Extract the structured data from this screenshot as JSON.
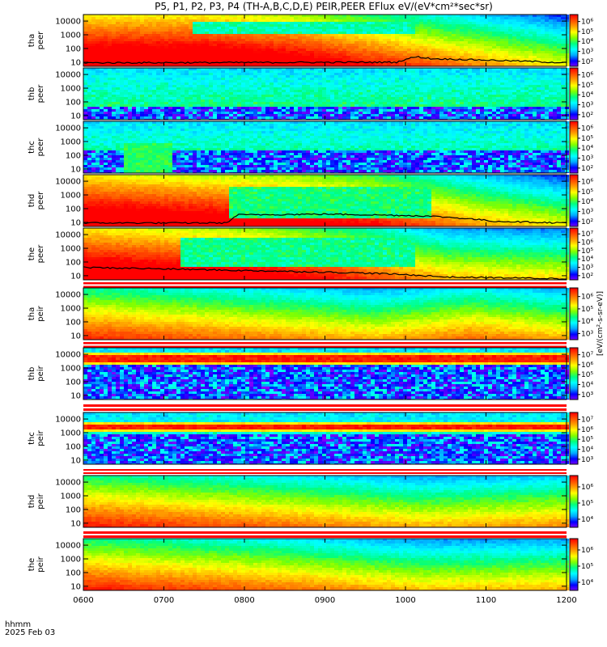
{
  "title": "P5, P1, P2, P3, P4 (TH-A,B,C,D,E) PEIR,PEER EFlux eV/(eV*cm²*sec*sr)",
  "footer": {
    "line1": "hhmm",
    "line2": "2025 Feb 03"
  },
  "colorbar_label": "[eV/(cm²-s-sr-eV)]",
  "colormap": [
    "#7f00ff",
    "#0000ff",
    "#00aaff",
    "#00ffff",
    "#00ff80",
    "#80ff00",
    "#ffff00",
    "#ffa000",
    "#ff5000",
    "#ff0000"
  ],
  "chart_data": {
    "type": "heatmap",
    "x": {
      "ticks": [
        "0600",
        "0700",
        "0800",
        "0900",
        "1000",
        "1100",
        "1200"
      ],
      "range": [
        "06:00",
        "12:00"
      ],
      "date": "2025 Feb 03"
    },
    "y_ticks": [
      "10",
      "100",
      "1000",
      "10000"
    ],
    "yscale": "log",
    "ylim": [
      5,
      30000
    ],
    "panels": [
      {
        "label1": "tha",
        "label2": "peer",
        "cbar_ticks": [
          "10²",
          "10³",
          "10⁴",
          "10⁵",
          "10⁶"
        ],
        "cbar_exp": [
          2,
          6
        ],
        "profile": [
          [
            0,
            0.95
          ],
          [
            0.25,
            0.95
          ],
          [
            0.42,
            0.88
          ],
          [
            0.58,
            0.75
          ],
          [
            1,
            0.4
          ]
        ],
        "band": {
          "t0": 0.22,
          "t1": 0.68,
          "center": 0.78,
          "width": 0.12,
          "level": 0.35
        },
        "curve": [
          [
            0,
            9
          ],
          [
            0.65,
            10
          ],
          [
            0.69,
            25
          ],
          [
            0.72,
            18
          ],
          [
            1,
            9
          ]
        ]
      },
      {
        "label1": "thb",
        "label2": "peer",
        "cbar_ticks": [
          "10²",
          "10³",
          "10⁴",
          "10⁵",
          "10⁶"
        ],
        "cbar_exp": [
          2,
          6
        ],
        "profile": [
          [
            0,
            0.95
          ],
          [
            0.45,
            0.88
          ],
          [
            0.6,
            0.55
          ],
          [
            0.72,
            0.25
          ],
          [
            1,
            0.2
          ]
        ],
        "noise_top": 0.28
      },
      {
        "label1": "thc",
        "label2": "peer",
        "cbar_ticks": [
          "10²",
          "10³",
          "10⁴",
          "10⁵",
          "10⁶"
        ],
        "cbar_exp": [
          2,
          6
        ],
        "profile": [
          [
            0,
            1.0
          ],
          [
            0.35,
            0.9
          ],
          [
            0.55,
            0.5
          ],
          [
            0.7,
            0.15
          ],
          [
            1,
            0.1
          ]
        ],
        "noise_top": 0.45,
        "gap": {
          "t0": 0.08,
          "t1": 0.18,
          "level": 0.45
        }
      },
      {
        "label1": "thd",
        "label2": "peer",
        "cbar_ticks": [
          "10²",
          "10³",
          "10⁴",
          "10⁵",
          "10⁶"
        ],
        "cbar_exp": [
          2,
          6
        ],
        "profile": [
          [
            0,
            0.95
          ],
          [
            0.4,
            0.85
          ],
          [
            0.6,
            0.75
          ],
          [
            0.8,
            0.55
          ],
          [
            1,
            0.4
          ]
        ],
        "band": {
          "t0": 0.3,
          "t1": 0.72,
          "center": 0.5,
          "width": 0.3,
          "level": 0.4
        },
        "curve": [
          [
            0,
            9
          ],
          [
            0.3,
            9
          ],
          [
            0.32,
            35
          ],
          [
            0.5,
            40
          ],
          [
            0.7,
            30
          ],
          [
            0.85,
            12
          ],
          [
            1,
            9
          ]
        ]
      },
      {
        "label1": "the",
        "label2": "peer",
        "cbar_ticks": [
          "10²",
          "10³",
          "10⁴",
          "10⁵",
          "10⁶",
          "10⁷"
        ],
        "cbar_exp": [
          2,
          7
        ],
        "profile": [
          [
            0,
            0.95
          ],
          [
            0.35,
            0.85
          ],
          [
            0.55,
            0.7
          ],
          [
            0.75,
            0.5
          ],
          [
            1,
            0.45
          ]
        ],
        "band": {
          "t0": 0.2,
          "t1": 0.68,
          "center": 0.55,
          "width": 0.3,
          "level": 0.38
        },
        "curve": [
          [
            0,
            40
          ],
          [
            0.3,
            25
          ],
          [
            0.6,
            15
          ],
          [
            0.75,
            8
          ],
          [
            1,
            6
          ]
        ]
      },
      {
        "label1": "tha",
        "label2": "peir",
        "cbar_ticks": [
          "10³",
          "10⁴",
          "10⁵",
          "10⁶"
        ],
        "cbar_exp": [
          3,
          6
        ],
        "profile": [
          [
            0,
            0.7
          ],
          [
            0.3,
            0.6
          ],
          [
            0.6,
            0.5
          ],
          [
            0.8,
            0.6
          ],
          [
            1,
            0.5
          ]
        ]
      },
      {
        "label1": "thb",
        "label2": "peir",
        "cbar_ticks": [
          "10³",
          "10⁴",
          "10⁵",
          "10⁶",
          "10⁷"
        ],
        "cbar_exp": [
          3,
          7
        ],
        "profile": [
          [
            0,
            0.95
          ],
          [
            1,
            0.9
          ]
        ],
        "noise_top": 0.72,
        "hot_band": {
          "center": 0.82,
          "width": 0.07
        }
      },
      {
        "label1": "thc",
        "label2": "peir",
        "cbar_ticks": [
          "10³",
          "10⁴",
          "10⁵",
          "10⁶",
          "10⁷"
        ],
        "cbar_exp": [
          3,
          7
        ],
        "profile": [
          [
            0,
            0.9
          ],
          [
            1,
            0.85
          ]
        ],
        "noise_top": 0.62,
        "hot_band": {
          "center": 0.74,
          "width": 0.06
        }
      },
      {
        "label1": "thd",
        "label2": "peir",
        "cbar_ticks": [
          "10⁴",
          "10⁵",
          "10⁶"
        ],
        "cbar_exp": [
          4,
          6
        ],
        "profile": [
          [
            0,
            0.72
          ],
          [
            0.4,
            0.6
          ],
          [
            0.7,
            0.5
          ],
          [
            1,
            0.55
          ]
        ]
      },
      {
        "label1": "the",
        "label2": "peir",
        "cbar_ticks": [
          "10⁴",
          "10⁵",
          "10⁶"
        ],
        "cbar_exp": [
          4,
          6
        ],
        "profile": [
          [
            0,
            0.72
          ],
          [
            0.4,
            0.6
          ],
          [
            0.7,
            0.48
          ],
          [
            1,
            0.5
          ]
        ]
      }
    ]
  }
}
